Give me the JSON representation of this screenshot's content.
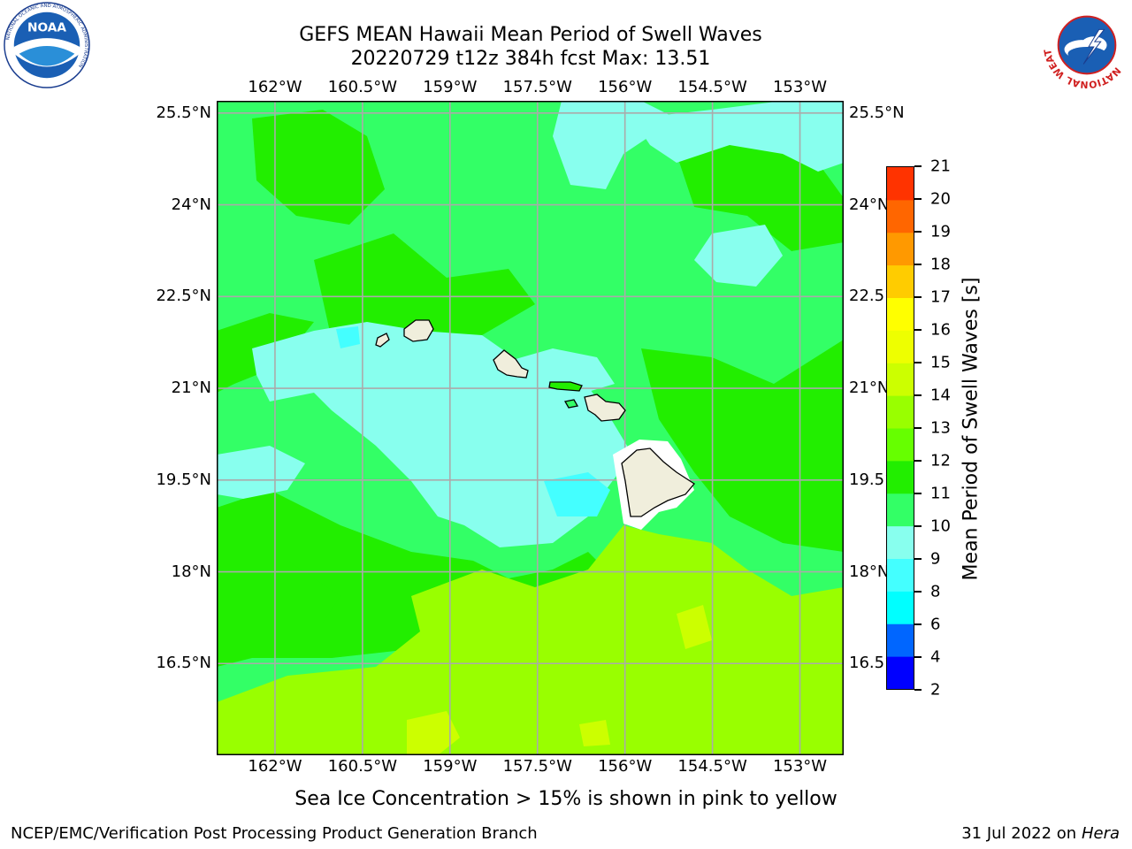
{
  "title": {
    "line1": "GEFS MEAN Hawaii Mean Period of Swell Waves",
    "line2": "20220729 t12z 384h fcst   Max: 13.51"
  },
  "map": {
    "lon_ticks": [
      "162°W",
      "160.5°W",
      "159°W",
      "157.5°W",
      "156°W",
      "154.5°W",
      "153°W"
    ],
    "lon_values": [
      -162,
      -160.5,
      -159,
      -157.5,
      -156,
      -154.5,
      -153
    ],
    "lat_ticks": [
      "25.5°N",
      "24°N",
      "22.5°N",
      "21°N",
      "19.5°N",
      "18°N",
      "16.5°N"
    ],
    "lat_values": [
      25.5,
      24,
      22.5,
      21,
      19.5,
      18,
      16.5
    ],
    "lon_range": [
      -163,
      -152.25
    ],
    "lat_range": [
      15.0,
      25.7
    ],
    "gridlines": true,
    "land_color": "#f0eedc",
    "gridline_color": "#aaaaaa"
  },
  "colorbar": {
    "title": "Mean Period of Swell Waves [s]",
    "levels": [
      "2",
      "4",
      "6",
      "8",
      "9",
      "10",
      "11",
      "12",
      "13",
      "14",
      "15",
      "16",
      "17",
      "18",
      "19",
      "20",
      "21"
    ],
    "colors": [
      "#0000ff",
      "#0066ff",
      "#00ffff",
      "#44ffff",
      "#88ffee",
      "#33ff66",
      "#22ee00",
      "#66ff00",
      "#99ff00",
      "#ccff00",
      "#eeff00",
      "#ffff00",
      "#ffcc00",
      "#ff9900",
      "#ff6600",
      "#ff3300",
      "#ff0000"
    ]
  },
  "footnote": "Sea Ice Concentration > 15% is shown in pink to yellow",
  "credit": "NCEP/EMC/Verification Post Processing Product Generation Branch",
  "date": {
    "text": "31 Jul 2022 on ",
    "host": "Hera"
  },
  "logos": {
    "noaa": {
      "text": "NOAA",
      "ring": "NATIONAL OCEANIC AND ATMOSPHERIC ADMINISTRATION"
    },
    "nws": {
      "ring": "NATIONAL WEATHER SERVICE"
    }
  }
}
